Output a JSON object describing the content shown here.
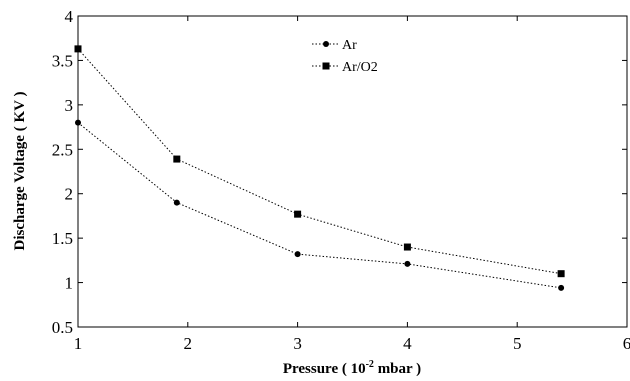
{
  "chart_data": {
    "type": "line",
    "title": "",
    "xlabel": "Pressure ( 10",
    "xlabel_exponent": "-2",
    "xlabel_suffix": " mbar )",
    "ylabel": "Discharge Voltage ( KV )",
    "xlim": [
      1,
      6
    ],
    "ylim": [
      0.5,
      4
    ],
    "x_ticks": [
      "1",
      "2",
      "3",
      "4",
      "5",
      "6"
    ],
    "y_ticks": [
      "0.5",
      "1",
      "1.5",
      "2",
      "2.5",
      "3",
      "3.5",
      "4"
    ],
    "grid": false,
    "legend_position": "top-center",
    "line_style": "dotted",
    "series": [
      {
        "name": "Ar",
        "marker": "circle",
        "x": [
          1,
          1.9,
          3,
          4,
          5.4
        ],
        "y": [
          2.8,
          1.9,
          1.32,
          1.21,
          0.94
        ]
      },
      {
        "name": "Ar/O2",
        "marker": "square",
        "x": [
          1,
          1.9,
          3,
          4,
          5.4
        ],
        "y": [
          3.63,
          2.39,
          1.77,
          1.4,
          1.1
        ]
      }
    ]
  }
}
